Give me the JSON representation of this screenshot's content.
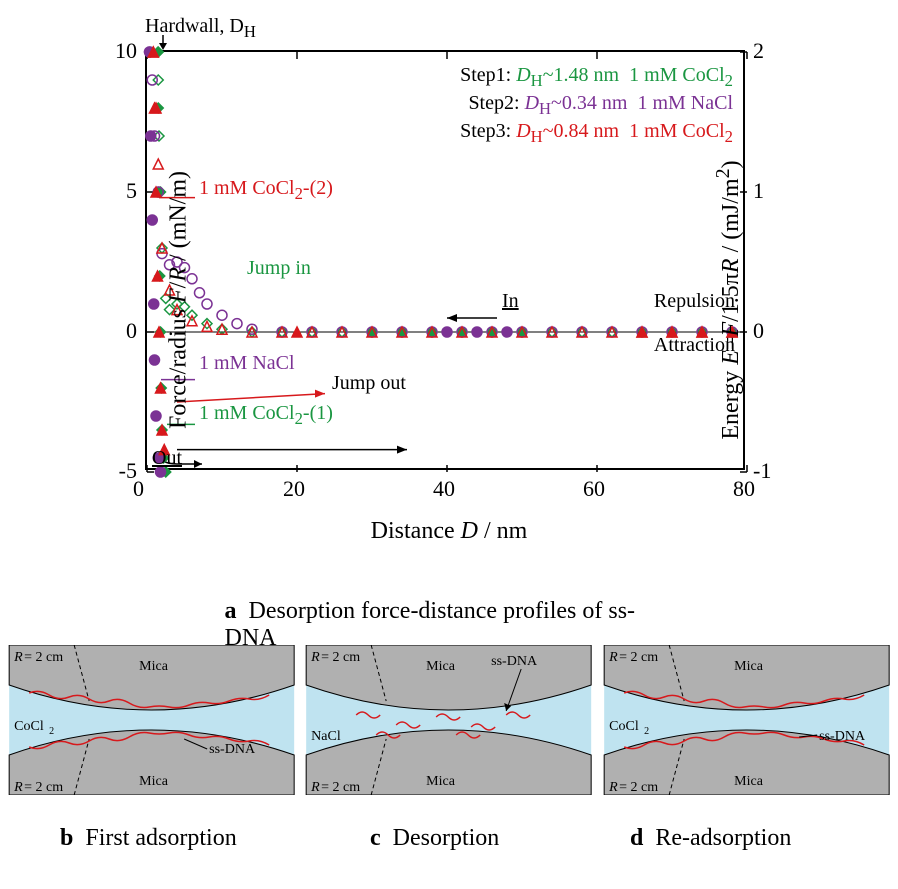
{
  "chart": {
    "type": "scatter",
    "xlim": [
      0,
      80
    ],
    "ylim_left": [
      -5,
      10
    ],
    "ylim_right": [
      -1,
      2
    ],
    "xtick_step": 20,
    "ytick_left_step": 5,
    "ytick_right_step": 1,
    "xticks": [
      0,
      20,
      40,
      60,
      80
    ],
    "yticks_left": [
      -5,
      0,
      5,
      10
    ],
    "yticks_right": [
      -1,
      0,
      1,
      2
    ],
    "xlabel": "Distance D / nm",
    "ylabel_left": "Force/radius F/R / (mN/m)",
    "ylabel_right": "Energy E=F/1.5πR / (mJ/m²)",
    "background_color": "#ffffff",
    "border_color": "#000000",
    "label_fontsize": 24,
    "tick_fontsize": 22,
    "annotation_fontsize": 20,
    "series": [
      {
        "name": "Step1 CoCl2-(1) in",
        "color": "#1a9641",
        "marker": "diamond-open",
        "data": [
          [
            78,
            0
          ],
          [
            74,
            0
          ],
          [
            70,
            0
          ],
          [
            66,
            0
          ],
          [
            62,
            0
          ],
          [
            58,
            0
          ],
          [
            54,
            0
          ],
          [
            50,
            0
          ],
          [
            46,
            0
          ],
          [
            42,
            0
          ],
          [
            38,
            0
          ],
          [
            34,
            0
          ],
          [
            30,
            0
          ],
          [
            26,
            0
          ],
          [
            22,
            0
          ],
          [
            18,
            0
          ],
          [
            14,
            0
          ],
          [
            10,
            0.1
          ],
          [
            8,
            0.3
          ],
          [
            6,
            0.6
          ],
          [
            5,
            0.9
          ],
          [
            4,
            1.0
          ],
          [
            3,
            0.8
          ],
          [
            2.5,
            1.2
          ],
          [
            2,
            3
          ],
          [
            1.8,
            5
          ],
          [
            1.6,
            7
          ],
          [
            1.5,
            9
          ],
          [
            1.48,
            10
          ]
        ]
      },
      {
        "name": "Step1 CoCl2-(1) out",
        "color": "#1a9641",
        "marker": "diamond-filled",
        "data": [
          [
            1.48,
            10
          ],
          [
            1.5,
            8
          ],
          [
            1.6,
            5
          ],
          [
            1.7,
            2
          ],
          [
            1.8,
            0
          ],
          [
            1.9,
            -2
          ],
          [
            2,
            -3.5
          ],
          [
            2.2,
            -4.5
          ],
          [
            2.5,
            -5
          ],
          [
            30,
            0
          ],
          [
            34,
            0
          ],
          [
            38,
            0
          ],
          [
            42,
            0
          ],
          [
            46,
            0
          ],
          [
            50,
            0
          ]
        ]
      },
      {
        "name": "Step2 NaCl in",
        "color": "#7b3294",
        "marker": "circle-open",
        "data": [
          [
            78,
            0
          ],
          [
            74,
            0
          ],
          [
            70,
            0
          ],
          [
            66,
            0
          ],
          [
            62,
            0
          ],
          [
            58,
            0
          ],
          [
            54,
            0
          ],
          [
            50,
            0
          ],
          [
            46,
            0
          ],
          [
            42,
            0
          ],
          [
            38,
            0
          ],
          [
            34,
            0
          ],
          [
            30,
            0
          ],
          [
            26,
            0
          ],
          [
            22,
            0
          ],
          [
            18,
            0
          ],
          [
            14,
            0.1
          ],
          [
            12,
            0.3
          ],
          [
            10,
            0.6
          ],
          [
            8,
            1.0
          ],
          [
            7,
            1.4
          ],
          [
            6,
            1.9
          ],
          [
            5,
            2.3
          ],
          [
            4,
            2.5
          ],
          [
            3,
            2.4
          ],
          [
            2,
            2.8
          ],
          [
            1.5,
            5
          ],
          [
            1,
            7
          ],
          [
            0.7,
            9
          ],
          [
            0.34,
            10
          ]
        ]
      },
      {
        "name": "Step2 NaCl out",
        "color": "#7b3294",
        "marker": "circle-filled",
        "data": [
          [
            0.34,
            10
          ],
          [
            0.5,
            7
          ],
          [
            0.7,
            4
          ],
          [
            0.9,
            1
          ],
          [
            1,
            -1
          ],
          [
            1.2,
            -3
          ],
          [
            1.5,
            -4.5
          ],
          [
            1.8,
            -5
          ],
          [
            2,
            -5.2
          ],
          [
            40,
            0
          ],
          [
            44,
            0
          ],
          [
            48,
            0
          ]
        ]
      },
      {
        "name": "Step3 CoCl2-(2) in",
        "color": "#d7191c",
        "marker": "triangle-open",
        "data": [
          [
            78,
            0
          ],
          [
            74,
            0
          ],
          [
            70,
            0
          ],
          [
            66,
            0
          ],
          [
            62,
            0
          ],
          [
            58,
            0
          ],
          [
            54,
            0
          ],
          [
            50,
            0
          ],
          [
            46,
            0
          ],
          [
            42,
            0
          ],
          [
            38,
            0
          ],
          [
            34,
            0
          ],
          [
            30,
            0
          ],
          [
            26,
            0
          ],
          [
            22,
            0
          ],
          [
            18,
            0
          ],
          [
            14,
            0
          ],
          [
            10,
            0.1
          ],
          [
            8,
            0.2
          ],
          [
            6,
            0.4
          ],
          [
            4,
            0.8
          ],
          [
            3,
            1.5
          ],
          [
            2,
            3
          ],
          [
            1.5,
            6
          ],
          [
            1.2,
            8
          ],
          [
            0.84,
            10
          ]
        ]
      },
      {
        "name": "Step3 CoCl2-(2) out",
        "color": "#d7191c",
        "marker": "triangle-filled",
        "data": [
          [
            0.84,
            10
          ],
          [
            1,
            8
          ],
          [
            1.2,
            5
          ],
          [
            1.4,
            2
          ],
          [
            1.6,
            0
          ],
          [
            1.8,
            -2
          ],
          [
            2,
            -3.5
          ],
          [
            2.3,
            -4.2
          ],
          [
            20,
            0
          ],
          [
            66,
            0
          ],
          [
            70,
            0
          ],
          [
            74,
            0
          ],
          [
            78,
            0
          ]
        ]
      }
    ],
    "annotations": {
      "hardwall_label": "Hardwall, D",
      "hardwall_sub": "H",
      "step1": {
        "prefix": "Step1: ",
        "dh": "D",
        "dh_sub": "H",
        "val": "~1.48 nm",
        "cond": "1 mM CoCl",
        "cond_sub": "2",
        "color": "#1a9641"
      },
      "step2": {
        "prefix": "Step2: ",
        "dh": "D",
        "dh_sub": "H",
        "val": "~0.34 nm",
        "cond": "1 mM NaCl",
        "color": "#7b3294"
      },
      "step3": {
        "prefix": "Step3: ",
        "dh": "D",
        "dh_sub": "H",
        "val": "~0.84 nm",
        "cond": "1 mM CoCl",
        "cond_sub": "2",
        "color": "#d7191c"
      },
      "cocl2_2_label": "1 mM CoCl",
      "cocl2_2_sub": "2",
      "cocl2_2_suffix": "-(2)",
      "nacl_label": "1 mM NaCl",
      "cocl2_1_label": "1 mM CoCl",
      "cocl2_1_sub": "2",
      "cocl2_1_suffix": "-(1)",
      "jump_in": "Jump in",
      "jump_out": "Jump out",
      "in_label": "In",
      "out_label": "Out",
      "repulsion": "Repulsion",
      "attraction": "Attraction"
    },
    "arrow_color": "#000000"
  },
  "captions": {
    "a_bold": "a",
    "a_text": "Desorption force-distance profiles of ss-DNA",
    "b_bold": "b",
    "b_text": "First adsorption",
    "c_bold": "c",
    "c_text": "Desorption",
    "d_bold": "d",
    "d_text": "Re-adsorption"
  },
  "schematics": {
    "bg_fluid": "#bfe3f0",
    "mica_color": "#b0b0b0",
    "dna_color": "#d7191c",
    "line_color": "#000000",
    "r_label": "R = 2 cm",
    "mica_label": "Mica",
    "ssdna_label": "ss-DNA",
    "cocl2_label": "CoCl",
    "cocl2_sub": "2",
    "nacl_label": "NaCl",
    "label_fontsize": 14
  }
}
